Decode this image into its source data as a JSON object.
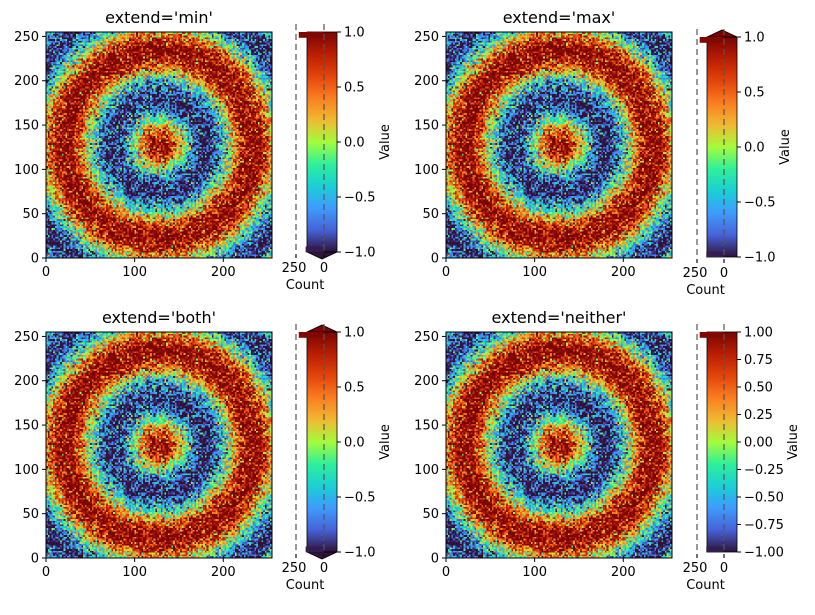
{
  "chart_data": [
    {
      "type": "heatmap",
      "title": "extend='min'",
      "extend": "min",
      "colormap": "turbo",
      "pattern": "concentric rings with random noise",
      "xlim": [
        0,
        255
      ],
      "ylim": [
        0,
        255
      ],
      "x_ticks": [
        0,
        100,
        200
      ],
      "y_ticks": [
        0,
        50,
        100,
        150,
        200,
        250
      ],
      "colorbar": {
        "label": "Value",
        "range": [
          -1.0,
          1.0
        ],
        "ticks": [
          1.0,
          0.5,
          0.0,
          -0.5,
          -1.0
        ],
        "tick_labels": [
          "1.0",
          "0.5",
          "0.0",
          "−0.5",
          "−1.0"
        ]
      },
      "histogram": {
        "xlabel": "Count",
        "ticks": [
          "250",
          "0"
        ],
        "max_count": 250
      }
    },
    {
      "type": "heatmap",
      "title": "extend='max'",
      "extend": "max",
      "colormap": "turbo",
      "pattern": "concentric rings with random noise",
      "xlim": [
        0,
        255
      ],
      "ylim": [
        0,
        255
      ],
      "x_ticks": [
        0,
        100,
        200
      ],
      "y_ticks": [
        0,
        50,
        100,
        150,
        200,
        250
      ],
      "colorbar": {
        "label": "Value",
        "range": [
          -1.0,
          1.0
        ],
        "ticks": [
          1.0,
          0.5,
          0.0,
          -0.5,
          -1.0
        ],
        "tick_labels": [
          "1.0",
          "0.5",
          "0.0",
          "−0.5",
          "−1.0"
        ]
      },
      "histogram": {
        "xlabel": "Count",
        "ticks": [
          "250",
          "0"
        ],
        "max_count": 250
      }
    },
    {
      "type": "heatmap",
      "title": "extend='both'",
      "extend": "both",
      "colormap": "turbo",
      "pattern": "concentric rings with random noise",
      "xlim": [
        0,
        255
      ],
      "ylim": [
        0,
        255
      ],
      "x_ticks": [
        0,
        100,
        200
      ],
      "y_ticks": [
        0,
        50,
        100,
        150,
        200,
        250
      ],
      "colorbar": {
        "label": "Value",
        "range": [
          -1.0,
          1.0
        ],
        "ticks": [
          1.0,
          0.5,
          0.0,
          -0.5,
          -1.0
        ],
        "tick_labels": [
          "1.0",
          "0.5",
          "0.0",
          "−0.5",
          "−1.0"
        ]
      },
      "histogram": {
        "xlabel": "Count",
        "ticks": [
          "250",
          "0"
        ],
        "max_count": 250
      }
    },
    {
      "type": "heatmap",
      "title": "extend='neither'",
      "extend": "neither",
      "colormap": "turbo",
      "pattern": "concentric rings with random noise",
      "xlim": [
        0,
        255
      ],
      "ylim": [
        0,
        255
      ],
      "x_ticks": [
        0,
        100,
        200
      ],
      "y_ticks": [
        0,
        50,
        100,
        150,
        200,
        250
      ],
      "colorbar": {
        "label": "Value",
        "range": [
          -1.0,
          1.0
        ],
        "ticks": [
          1.0,
          0.75,
          0.5,
          0.25,
          0.0,
          -0.25,
          -0.5,
          -0.75,
          -1.0
        ],
        "tick_labels": [
          "1.00",
          "0.75",
          "0.50",
          "0.25",
          "0.00",
          "−0.25",
          "−0.50",
          "−0.75",
          "−1.00"
        ]
      },
      "histogram": {
        "xlabel": "Count",
        "ticks": [
          "250",
          "0"
        ],
        "max_count": 250
      }
    }
  ]
}
